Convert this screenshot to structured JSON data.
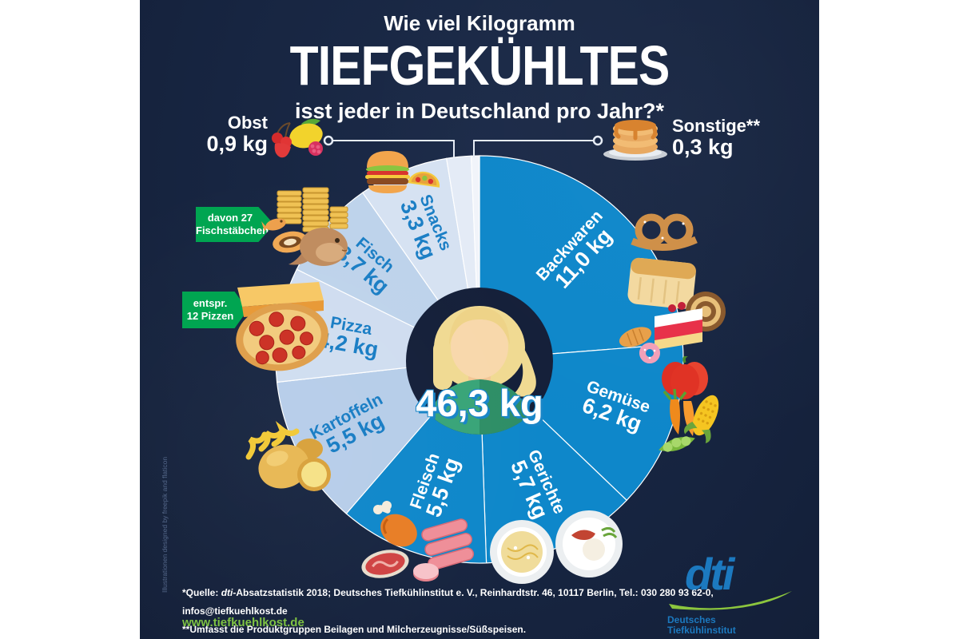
{
  "header": {
    "kicker": "Wie viel Kilogramm",
    "title": "TIEFGEKÜHLTES",
    "subtitle": "isst jeder in Deutschland pro Jahr?*"
  },
  "chart_data": {
    "type": "pie",
    "title": "Wie viel Kilogramm Tiefgekühltes isst jeder in Deutschland pro Jahr?",
    "unit": "kg",
    "total_value": 46.3,
    "total_label": "46,3 kg",
    "legend": "none",
    "label_position": "inside-radial",
    "start_angle_deg": 0,
    "direction": "clockwise",
    "slices": [
      {
        "label": "Backwaren",
        "value": 11.0,
        "value_label": "11,0 kg",
        "color": "#0e87ca",
        "text_color": "#ffffff"
      },
      {
        "label": "Gemüse",
        "value": 6.2,
        "value_label": "6,2 kg",
        "color": "#0e87ca",
        "text_color": "#ffffff"
      },
      {
        "label": "Gerichte",
        "value": 5.7,
        "value_label": "5,7 kg",
        "color": "#0e87ca",
        "text_color": "#ffffff"
      },
      {
        "label": "Fleisch",
        "value": 5.5,
        "value_label": "5,5 kg",
        "color": "#0e87ca",
        "text_color": "#ffffff"
      },
      {
        "label": "Kartoffeln",
        "value": 5.5,
        "value_label": "5,5 kg",
        "color": "#b6cde9",
        "text_color": "#1c7fc5"
      },
      {
        "label": "Pizza",
        "value": 4.2,
        "value_label": "4,2 kg",
        "color": "#cfddf0",
        "text_color": "#1c7fc5"
      },
      {
        "label": "Fisch",
        "value": 3.7,
        "value_label": "3,7 kg",
        "color": "#bed3eb",
        "text_color": "#1c7fc5"
      },
      {
        "label": "Snacks",
        "value": 3.3,
        "value_label": "3,3 kg",
        "color": "#d6e2f2",
        "text_color": "#1c7fc5"
      },
      {
        "label": "Obst",
        "value": 0.9,
        "value_label": "0,9 kg",
        "color": "#e4ebf6",
        "text_color": "#ffffff",
        "external": true
      },
      {
        "label": "Sonstige**",
        "value": 0.3,
        "value_label": "0,3 kg",
        "color": "#f1f4fa",
        "text_color": "#ffffff",
        "external": true
      }
    ],
    "annotations": [
      {
        "target": "Fisch",
        "line1": "davon  27",
        "line2": "Fischstäbchen"
      },
      {
        "target": "Pizza",
        "line1": "entspr.",
        "line2": "12 Pizzen"
      }
    ]
  },
  "footer": {
    "note1_prefix": "*Quelle: ",
    "note1_dti": "dti",
    "note1_rest": "-Absatzstatistik 2018; Deutsches Tiefkühlinstitut e. V., Reinhardtstr. 46, 10117 Berlin, Tel.: 030 280 93 62-0, infos@tiefkuehlkost.de",
    "note2": "**Umfasst die Produktgruppen Beilagen und Milcherzeugnisse/Süßspeisen.",
    "website": "www.tiefkuehlkost.de"
  },
  "logo": {
    "abbr": "dti",
    "line1": "Deutsches",
    "line2": "Tiefkühlinstitut"
  },
  "credits": "Illustrationen designed by freepik and flaticon",
  "colors": {
    "background_navy": "#172541",
    "bright_slice_blue": "#0e87ca",
    "label_blue": "#1c7fc5",
    "tag_green": "#00a551",
    "website_green": "#7ec242",
    "logo_blue": "#1c79bf",
    "logo_swoosh_green": "#8cc63e"
  }
}
